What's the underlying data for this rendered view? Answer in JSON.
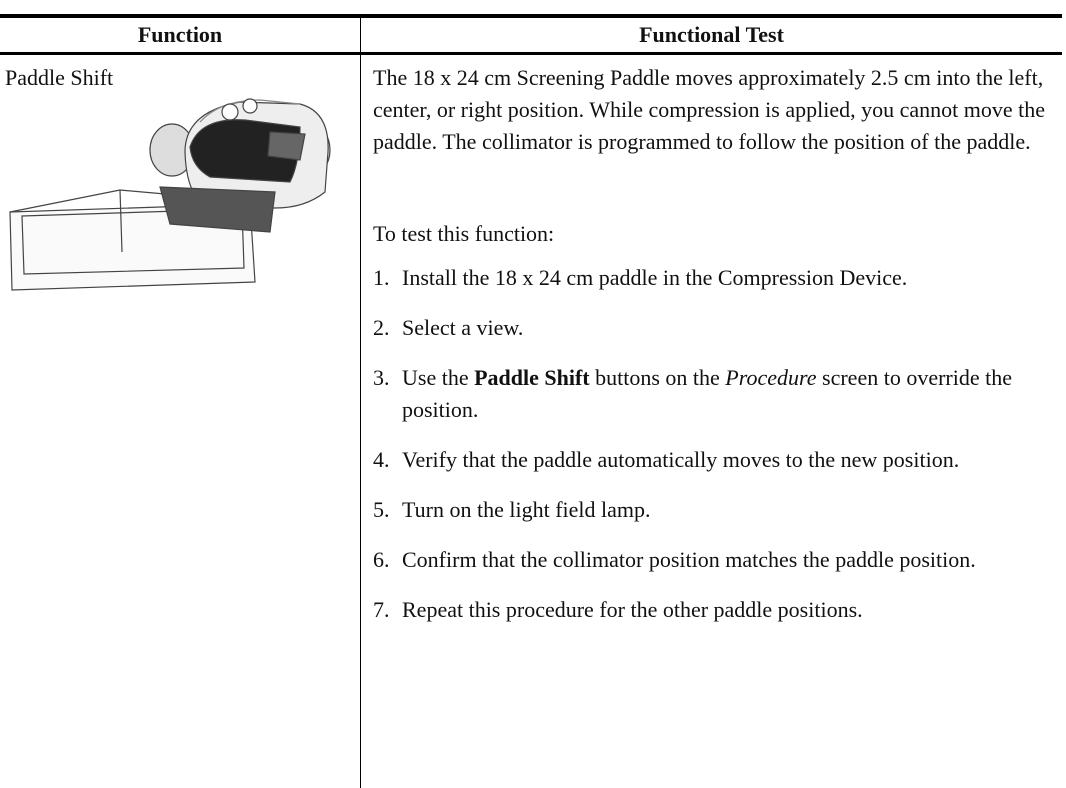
{
  "table": {
    "headers": [
      "Function",
      "Functional Test"
    ],
    "rows": [
      {
        "function": "Paddle Shift",
        "description": "The 18 x 24 cm Screening Paddle moves approximately 2.5 cm into the left, center, or right position. While compression is applied, you cannot move the paddle. The collimator is programmed to follow the position of the paddle.",
        "intro": "To test this function:",
        "steps": [
          {
            "number": "1.",
            "parts": [
              "Install the 18 x 24 cm paddle in the Compression Device."
            ]
          },
          {
            "number": "2.",
            "parts": [
              "Select a view."
            ]
          },
          {
            "number": "3.",
            "parts": [
              "Use the ",
              "Paddle Shift",
              " buttons on the ",
              "Procedure",
              " screen to override the position."
            ]
          },
          {
            "number": "4.",
            "parts": [
              "Verify that the paddle automatically moves to the new position."
            ]
          },
          {
            "number": "5.",
            "parts": [
              "Turn on the light field lamp."
            ]
          },
          {
            "number": "6.",
            "parts": [
              "Confirm that the collimator position matches the paddle position."
            ]
          },
          {
            "number": "7.",
            "parts": [
              "Repeat this procedure for the other paddle positions."
            ]
          }
        ]
      }
    ]
  }
}
